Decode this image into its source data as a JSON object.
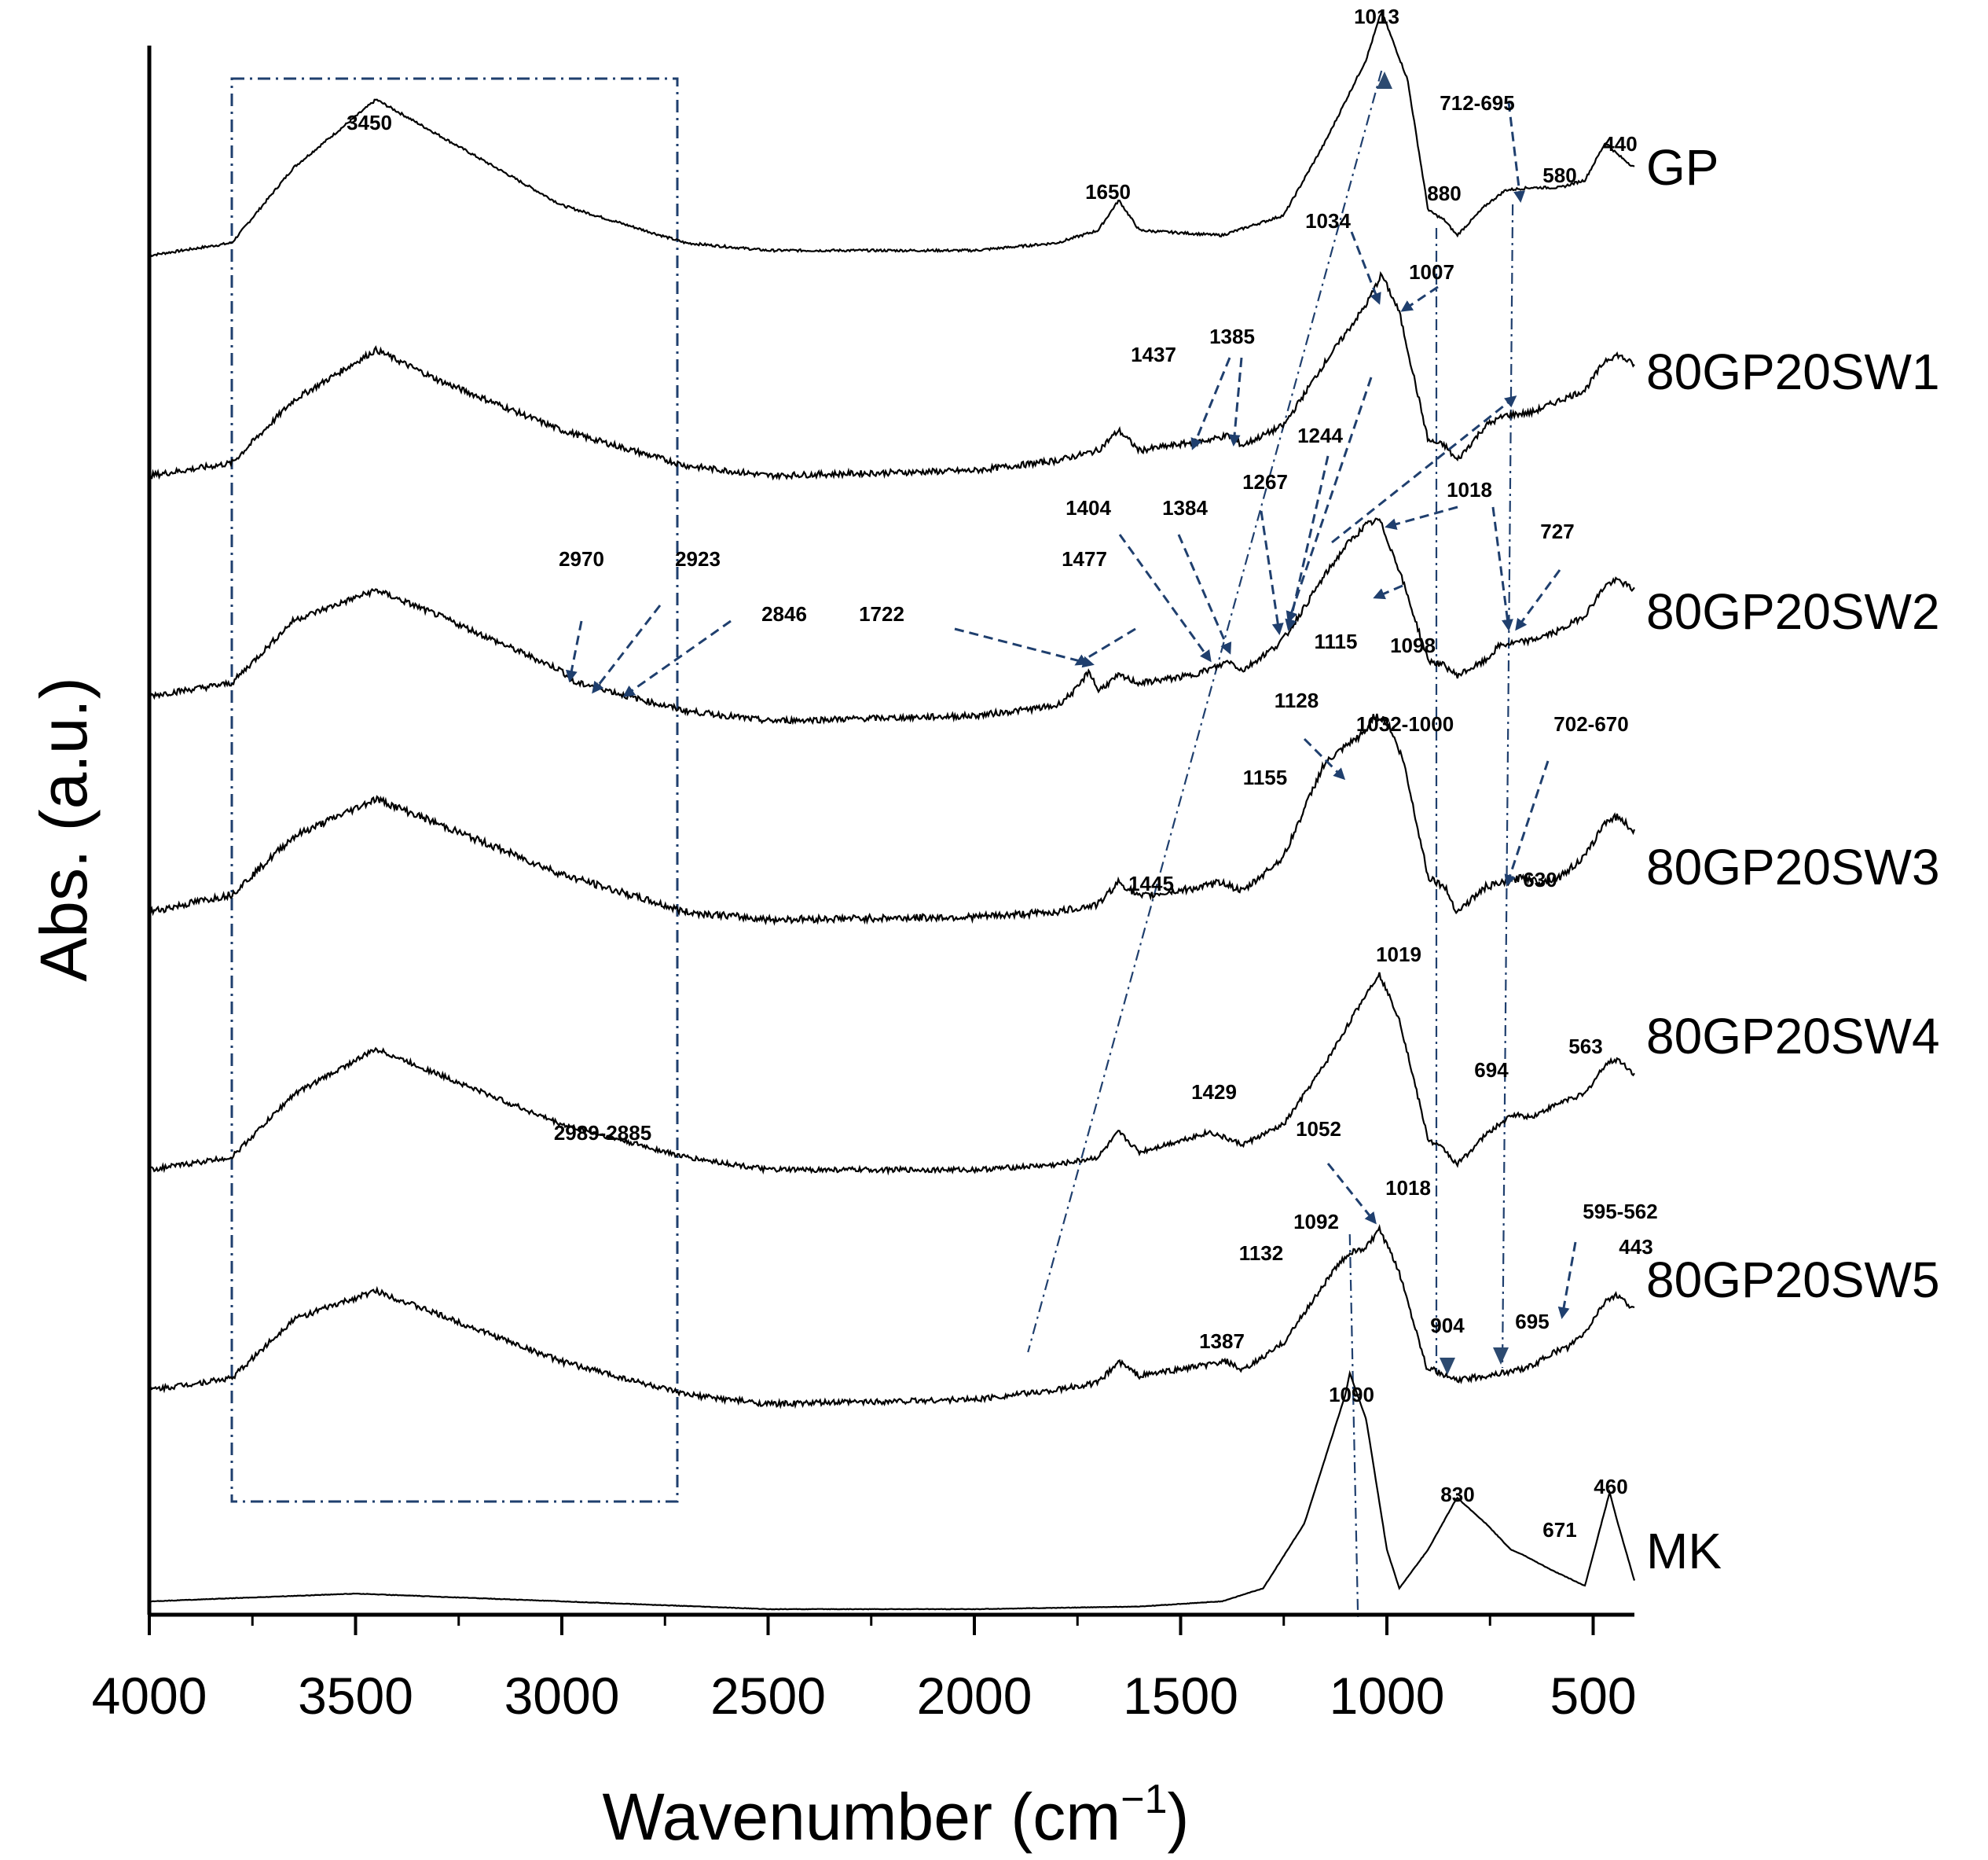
{
  "chart_data": {
    "type": "line",
    "title": "",
    "xlabel": "Wavenumber (cm",
    "xlabel_sup": "−1",
    "xlabel_close": ")",
    "ylabel": "Abs. (a.u.)",
    "xlim": [
      4000,
      400
    ],
    "x_ticks": [
      "4000",
      "3500",
      "3000",
      "2500",
      "2000",
      "1500",
      "1000",
      "500"
    ],
    "x_tick_values": [
      4000,
      3500,
      3000,
      2500,
      2000,
      1500,
      1000,
      500
    ],
    "annotation_color": "#1f3f6e",
    "highlight_box": {
      "x_from": 3800,
      "x_to": 2720,
      "description": "dash-dot region"
    },
    "series": [
      {
        "name": "GP",
        "points": [
          [
            4000,
            0.0
          ],
          [
            3800,
            0.05
          ],
          [
            3650,
            0.35
          ],
          [
            3450,
            0.62
          ],
          [
            3300,
            0.48
          ],
          [
            3000,
            0.2
          ],
          [
            2700,
            0.05
          ],
          [
            2500,
            0.02
          ],
          [
            2000,
            0.02
          ],
          [
            1800,
            0.05
          ],
          [
            1700,
            0.1
          ],
          [
            1650,
            0.22
          ],
          [
            1600,
            0.1
          ],
          [
            1400,
            0.08
          ],
          [
            1250,
            0.16
          ],
          [
            1150,
            0.45
          ],
          [
            1050,
            0.78
          ],
          [
            1013,
            0.97
          ],
          [
            950,
            0.7
          ],
          [
            900,
            0.18
          ],
          [
            860,
            0.14
          ],
          [
            830,
            0.08
          ],
          [
            760,
            0.2
          ],
          [
            712,
            0.26
          ],
          [
            650,
            0.27
          ],
          [
            580,
            0.27
          ],
          [
            520,
            0.3
          ],
          [
            470,
            0.45
          ],
          [
            440,
            0.4
          ],
          [
            400,
            0.35
          ]
        ],
        "noise": 0.005
      },
      {
        "name": "80GP20SW1",
        "points": [
          [
            4000,
            0.0
          ],
          [
            3800,
            0.05
          ],
          [
            3650,
            0.3
          ],
          [
            3450,
            0.5
          ],
          [
            3300,
            0.38
          ],
          [
            3000,
            0.18
          ],
          [
            2700,
            0.04
          ],
          [
            2500,
            0.0
          ],
          [
            2000,
            0.02
          ],
          [
            1800,
            0.06
          ],
          [
            1700,
            0.1
          ],
          [
            1650,
            0.18
          ],
          [
            1600,
            0.1
          ],
          [
            1437,
            0.14
          ],
          [
            1385,
            0.16
          ],
          [
            1350,
            0.12
          ],
          [
            1250,
            0.2
          ],
          [
            1150,
            0.45
          ],
          [
            1050,
            0.68
          ],
          [
            1013,
            0.8
          ],
          [
            970,
            0.65
          ],
          [
            900,
            0.14
          ],
          [
            860,
            0.12
          ],
          [
            830,
            0.06
          ],
          [
            760,
            0.2
          ],
          [
            712,
            0.24
          ],
          [
            650,
            0.25
          ],
          [
            580,
            0.3
          ],
          [
            520,
            0.34
          ],
          [
            470,
            0.46
          ],
          [
            440,
            0.48
          ],
          [
            400,
            0.44
          ]
        ],
        "noise": 0.012
      },
      {
        "name": "80GP20SW2",
        "points": [
          [
            4000,
            0.0
          ],
          [
            3800,
            0.05
          ],
          [
            3650,
            0.3
          ],
          [
            3450,
            0.42
          ],
          [
            3300,
            0.32
          ],
          [
            3000,
            0.1
          ],
          [
            2970,
            0.05
          ],
          [
            2923,
            0.04
          ],
          [
            2846,
            0.0
          ],
          [
            2700,
            -0.06
          ],
          [
            2500,
            -0.1
          ],
          [
            2000,
            -0.08
          ],
          [
            1800,
            -0.04
          ],
          [
            1750,
            0.03
          ],
          [
            1722,
            0.1
          ],
          [
            1700,
            0.02
          ],
          [
            1650,
            0.08
          ],
          [
            1600,
            0.05
          ],
          [
            1477,
            0.08
          ],
          [
            1404,
            0.12
          ],
          [
            1384,
            0.14
          ],
          [
            1350,
            0.1
          ],
          [
            1267,
            0.2
          ],
          [
            1244,
            0.24
          ],
          [
            1150,
            0.48
          ],
          [
            1115,
            0.56
          ],
          [
            1098,
            0.6
          ],
          [
            1050,
            0.68
          ],
          [
            1018,
            0.7
          ],
          [
            970,
            0.5
          ],
          [
            900,
            0.14
          ],
          [
            860,
            0.12
          ],
          [
            830,
            0.08
          ],
          [
            760,
            0.14
          ],
          [
            727,
            0.2
          ],
          [
            650,
            0.22
          ],
          [
            580,
            0.26
          ],
          [
            520,
            0.32
          ],
          [
            470,
            0.44
          ],
          [
            440,
            0.46
          ],
          [
            400,
            0.42
          ]
        ],
        "noise": 0.012
      },
      {
        "name": "80GP20SW3",
        "points": [
          [
            4000,
            0.0
          ],
          [
            3800,
            0.07
          ],
          [
            3650,
            0.3
          ],
          [
            3450,
            0.45
          ],
          [
            3300,
            0.35
          ],
          [
            3000,
            0.15
          ],
          [
            2700,
            0.0
          ],
          [
            2500,
            -0.03
          ],
          [
            2000,
            -0.02
          ],
          [
            1800,
            0.0
          ],
          [
            1700,
            0.03
          ],
          [
            1650,
            0.12
          ],
          [
            1600,
            0.06
          ],
          [
            1445,
            0.1
          ],
          [
            1400,
            0.12
          ],
          [
            1350,
            0.08
          ],
          [
            1250,
            0.22
          ],
          [
            1155,
            0.58
          ],
          [
            1128,
            0.62
          ],
          [
            1050,
            0.72
          ],
          [
            1032,
            0.78
          ],
          [
            1000,
            0.76
          ],
          [
            960,
            0.6
          ],
          [
            900,
            0.14
          ],
          [
            860,
            0.1
          ],
          [
            830,
            0.0
          ],
          [
            760,
            0.1
          ],
          [
            702,
            0.12
          ],
          [
            670,
            0.14
          ],
          [
            630,
            0.12
          ],
          [
            580,
            0.14
          ],
          [
            520,
            0.22
          ],
          [
            470,
            0.36
          ],
          [
            440,
            0.38
          ],
          [
            400,
            0.32
          ]
        ],
        "noise": 0.014
      },
      {
        "name": "80GP20SW4",
        "points": [
          [
            4000,
            0.0
          ],
          [
            3800,
            0.05
          ],
          [
            3650,
            0.3
          ],
          [
            3450,
            0.48
          ],
          [
            3300,
            0.38
          ],
          [
            3000,
            0.18
          ],
          [
            2700,
            0.05
          ],
          [
            2500,
            0.0
          ],
          [
            2000,
            0.0
          ],
          [
            1800,
            0.02
          ],
          [
            1700,
            0.05
          ],
          [
            1650,
            0.15
          ],
          [
            1600,
            0.07
          ],
          [
            1429,
            0.15
          ],
          [
            1350,
            0.1
          ],
          [
            1250,
            0.18
          ],
          [
            1150,
            0.42
          ],
          [
            1050,
            0.7
          ],
          [
            1019,
            0.78
          ],
          [
            970,
            0.6
          ],
          [
            900,
            0.12
          ],
          [
            860,
            0.08
          ],
          [
            830,
            0.02
          ],
          [
            760,
            0.14
          ],
          [
            694,
            0.22
          ],
          [
            650,
            0.21
          ],
          [
            563,
            0.28
          ],
          [
            520,
            0.3
          ],
          [
            470,
            0.42
          ],
          [
            440,
            0.44
          ],
          [
            400,
            0.38
          ]
        ],
        "noise": 0.01
      },
      {
        "name": "80GP20SW5",
        "points": [
          [
            4000,
            0.0
          ],
          [
            3800,
            0.05
          ],
          [
            3650,
            0.3
          ],
          [
            3450,
            0.42
          ],
          [
            3300,
            0.32
          ],
          [
            3000,
            0.12
          ],
          [
            2700,
            -0.02
          ],
          [
            2500,
            -0.06
          ],
          [
            2000,
            -0.04
          ],
          [
            1800,
            0.0
          ],
          [
            1700,
            0.03
          ],
          [
            1650,
            0.12
          ],
          [
            1600,
            0.06
          ],
          [
            1387,
            0.12
          ],
          [
            1350,
            0.08
          ],
          [
            1250,
            0.2
          ],
          [
            1132,
            0.5
          ],
          [
            1092,
            0.58
          ],
          [
            1052,
            0.6
          ],
          [
            1018,
            0.68
          ],
          [
            970,
            0.5
          ],
          [
            904,
            0.1
          ],
          [
            860,
            0.06
          ],
          [
            830,
            0.04
          ],
          [
            760,
            0.06
          ],
          [
            695,
            0.08
          ],
          [
            650,
            0.1
          ],
          [
            595,
            0.16
          ],
          [
            562,
            0.18
          ],
          [
            520,
            0.24
          ],
          [
            470,
            0.38
          ],
          [
            443,
            0.4
          ],
          [
            400,
            0.34
          ]
        ],
        "noise": 0.012
      },
      {
        "name": "MK",
        "points": [
          [
            4000,
            0.0
          ],
          [
            3500,
            0.03
          ],
          [
            3000,
            0.0
          ],
          [
            2500,
            -0.03
          ],
          [
            2000,
            -0.03
          ],
          [
            1600,
            -0.02
          ],
          [
            1400,
            0.0
          ],
          [
            1300,
            0.05
          ],
          [
            1200,
            0.3
          ],
          [
            1150,
            0.55
          ],
          [
            1100,
            0.8
          ],
          [
            1090,
            0.88
          ],
          [
            1050,
            0.7
          ],
          [
            1000,
            0.2
          ],
          [
            970,
            0.05
          ],
          [
            900,
            0.2
          ],
          [
            830,
            0.4
          ],
          [
            760,
            0.3
          ],
          [
            700,
            0.2
          ],
          [
            671,
            0.18
          ],
          [
            600,
            0.12
          ],
          [
            520,
            0.06
          ],
          [
            480,
            0.3
          ],
          [
            460,
            0.42
          ],
          [
            440,
            0.3
          ],
          [
            400,
            0.08
          ]
        ],
        "noise": 0.001
      }
    ],
    "peak_labels": [
      "3450",
      "1650",
      "1013",
      "712-695",
      "440",
      "880",
      "580",
      "1034",
      "1007",
      "1437",
      "1385",
      "1244",
      "1404",
      "1384",
      "1267",
      "1018",
      "2970",
      "2923",
      "2846",
      "1722",
      "1477",
      "1115",
      "1098",
      "727",
      "1128",
      "1032-1000",
      "702-670",
      "1155",
      "630",
      "1445",
      "1019",
      "694",
      "563",
      "1429",
      "2989-2885",
      "1052",
      "1018",
      "1092",
      "1132",
      "595-562",
      "443",
      "904",
      "695",
      "1387",
      "1090",
      "830",
      "671",
      "460"
    ]
  }
}
